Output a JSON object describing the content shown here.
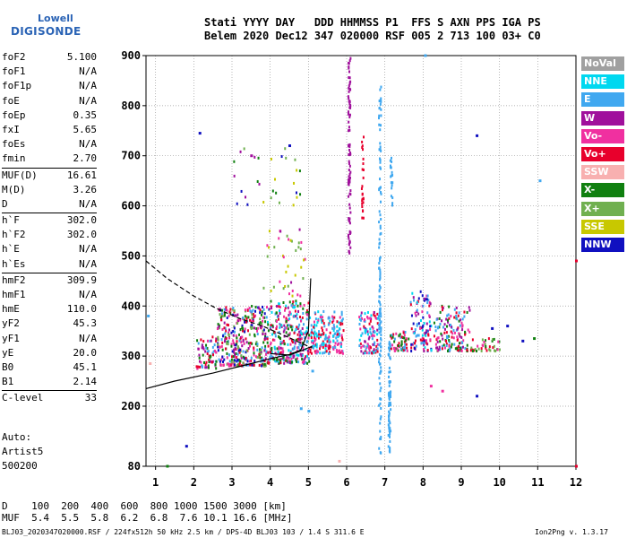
{
  "logo": {
    "line1": "Lowell",
    "line2": "DIGISONDE"
  },
  "header": {
    "line1": "Stati YYYY DAY   DDD HHMMSS P1  FFS S AXN PPS IGA PS",
    "line2": "Belem 2020 Dec12 347 020000 RSF 005 2 713 100 03+ C0"
  },
  "params_group1": [
    {
      "label": "foF2",
      "value": "5.100"
    },
    {
      "label": "foF1",
      "value": "N/A"
    },
    {
      "label": "foF1p",
      "value": "N/A"
    },
    {
      "label": "foE",
      "value": "N/A"
    },
    {
      "label": "foEp",
      "value": "0.35"
    },
    {
      "label": "fxI",
      "value": "5.65"
    },
    {
      "label": "foEs",
      "value": "N/A"
    },
    {
      "label": "fmin",
      "value": "2.70"
    }
  ],
  "params_group2": [
    {
      "label": "MUF(D)",
      "value": "16.61"
    },
    {
      "label": "M(D)",
      "value": "3.26"
    },
    {
      "label": "D",
      "value": "N/A"
    }
  ],
  "params_group3": [
    {
      "label": "h`F",
      "value": "302.0"
    },
    {
      "label": "h`F2",
      "value": "302.0"
    },
    {
      "label": "h`E",
      "value": "N/A"
    },
    {
      "label": "h`Es",
      "value": "N/A"
    }
  ],
  "params_group4": [
    {
      "label": "hmF2",
      "value": "309.9"
    },
    {
      "label": "hmF1",
      "value": "N/A"
    },
    {
      "label": "hmE",
      "value": "110.0"
    },
    {
      "label": "yF2",
      "value": "45.3"
    },
    {
      "label": "yF1",
      "value": "N/A"
    },
    {
      "label": "yE",
      "value": "20.0"
    },
    {
      "label": "B0",
      "value": "45.1"
    },
    {
      "label": "B1",
      "value": "2.14"
    }
  ],
  "params_group5": [
    {
      "label": "C-level",
      "value": "33"
    }
  ],
  "auto": {
    "line1": "Auto:",
    "line2": "Artist5",
    "line3": "500200"
  },
  "legend": [
    {
      "label": "NoVal",
      "color": "#a0a0a0"
    },
    {
      "label": "NNE",
      "color": "#00d8f0"
    },
    {
      "label": "E",
      "color": "#40a8f0"
    },
    {
      "label": "W",
      "color": "#a0109c"
    },
    {
      "label": "Vo-",
      "color": "#f030a0"
    },
    {
      "label": "Vo+",
      "color": "#e8002c"
    },
    {
      "label": "SSW",
      "color": "#f8b0b0"
    },
    {
      "label": "X-",
      "color": "#108010"
    },
    {
      "label": "X+",
      "color": "#70b050"
    },
    {
      "label": "SSE",
      "color": "#c8c800"
    },
    {
      "label": "NNW",
      "color": "#1010c0"
    }
  ],
  "muf_table": {
    "line1": "D    100  200  400  600  800 1000 1500 3000 [km]",
    "line2": "MUF  5.4  5.5  5.8  6.2  6.8  7.6 10.1 16.6 [MHz]"
  },
  "footer": "BLJ03_2020347020000.RSF / 224fx512h 50 kHz 2.5 km / DPS-4D BLJ03 103 / 1.4 S 311.6 E",
  "version": "Ion2Png v. 1.3.17",
  "chart_data": {
    "type": "scatter",
    "xlim": [
      0.75,
      12
    ],
    "ylim": [
      80,
      900
    ],
    "x_ticks": [
      1,
      2,
      3,
      4,
      5,
      6,
      7,
      8,
      9,
      10,
      11,
      12
    ],
    "y_ticks": [
      80,
      200,
      300,
      400,
      500,
      600,
      700,
      800,
      900
    ],
    "grid": "dotted",
    "clusters": [
      {
        "x0": 2.05,
        "x1": 2.6,
        "y0": 275,
        "y1": 340,
        "n": 70,
        "colors": [
          "#a0109c",
          "#e8002c",
          "#f030a0",
          "#108010",
          "#40a8f0"
        ]
      },
      {
        "x0": 2.6,
        "x1": 3.9,
        "y0": 280,
        "y1": 400,
        "n": 360,
        "colors": [
          "#a0109c",
          "#e8002c",
          "#f030a0",
          "#40a8f0",
          "#108010",
          "#70b050",
          "#1010c0"
        ]
      },
      {
        "x0": 3.9,
        "x1": 5.0,
        "y0": 285,
        "y1": 410,
        "n": 320,
        "colors": [
          "#a0109c",
          "#e8002c",
          "#f030a0",
          "#40a8f0",
          "#00d8f0",
          "#108010"
        ]
      },
      {
        "x0": 5.0,
        "x1": 5.55,
        "y0": 305,
        "y1": 390,
        "n": 120,
        "colors": [
          "#40a8f0",
          "#00d8f0",
          "#f030a0",
          "#e8002c"
        ]
      },
      {
        "x0": 5.6,
        "x1": 5.9,
        "y0": 305,
        "y1": 390,
        "n": 70,
        "colors": [
          "#40a8f0",
          "#00d8f0",
          "#e8002c",
          "#f030a0"
        ]
      },
      {
        "x0": 6.3,
        "x1": 6.8,
        "y0": 305,
        "y1": 390,
        "n": 100,
        "colors": [
          "#40a8f0",
          "#00d8f0",
          "#e8002c",
          "#f030a0",
          "#a0109c"
        ]
      },
      {
        "x0": 7.1,
        "x1": 7.6,
        "y0": 310,
        "y1": 350,
        "n": 60,
        "colors": [
          "#e8002c",
          "#f030a0",
          "#40a8f0",
          "#108010"
        ]
      },
      {
        "x0": 7.65,
        "x1": 8.2,
        "y0": 310,
        "y1": 430,
        "n": 110,
        "colors": [
          "#e8002c",
          "#f030a0",
          "#40a8f0",
          "#a0109c",
          "#00d8f0",
          "#1010c0"
        ]
      },
      {
        "x0": 8.25,
        "x1": 9.2,
        "y0": 310,
        "y1": 400,
        "n": 150,
        "colors": [
          "#e8002c",
          "#f030a0",
          "#40a8f0",
          "#a0109c",
          "#108010"
        ]
      },
      {
        "x0": 9.2,
        "x1": 10.0,
        "y0": 310,
        "y1": 335,
        "n": 40,
        "colors": [
          "#e8002c",
          "#f030a0",
          "#70b050",
          "#108010"
        ]
      },
      {
        "x0": 3.8,
        "x1": 4.9,
        "y0": 420,
        "y1": 560,
        "n": 40,
        "colors": [
          "#70b050",
          "#c8c800",
          "#a0109c",
          "#f030a0"
        ]
      },
      {
        "x0": 3.0,
        "x1": 4.8,
        "y0": 600,
        "y1": 720,
        "n": 30,
        "colors": [
          "#c8c800",
          "#70b050",
          "#108010",
          "#a0109c",
          "#1010c0"
        ]
      }
    ],
    "columns": [
      {
        "x": 6.05,
        "y0": 500,
        "y1": 900,
        "n": 90,
        "color": "#a0109c"
      },
      {
        "x": 6.4,
        "y0": 560,
        "y1": 740,
        "n": 25,
        "color": "#e8002c"
      },
      {
        "x": 6.85,
        "y0": 100,
        "y1": 840,
        "n": 130,
        "color": "#40a8f0"
      },
      {
        "x": 7.1,
        "y0": 100,
        "y1": 330,
        "n": 70,
        "color": "#40a8f0"
      },
      {
        "x": 7.15,
        "y0": 600,
        "y1": 700,
        "n": 20,
        "color": "#40a8f0"
      }
    ],
    "points": [
      {
        "x": 1.8,
        "y": 120,
        "c": "#1010c0"
      },
      {
        "x": 1.3,
        "y": 80,
        "c": "#108010"
      },
      {
        "x": 2.15,
        "y": 745,
        "c": "#1010c0"
      },
      {
        "x": 3.5,
        "y": 700,
        "c": "#a0109c"
      },
      {
        "x": 4.5,
        "y": 720,
        "c": "#1010c0"
      },
      {
        "x": 8.05,
        "y": 900,
        "c": "#40a8f0"
      },
      {
        "x": 9.4,
        "y": 740,
        "c": "#1010c0"
      },
      {
        "x": 9.4,
        "y": 220,
        "c": "#1010c0"
      },
      {
        "x": 11.05,
        "y": 650,
        "c": "#40a8f0"
      },
      {
        "x": 12.0,
        "y": 490,
        "c": "#e8002c"
      },
      {
        "x": 12.0,
        "y": 80,
        "c": "#e8002c"
      },
      {
        "x": 10.2,
        "y": 360,
        "c": "#1010c0"
      },
      {
        "x": 10.6,
        "y": 330,
        "c": "#1010c0"
      },
      {
        "x": 10.9,
        "y": 335,
        "c": "#108010"
      },
      {
        "x": 9.8,
        "y": 355,
        "c": "#1010c0"
      },
      {
        "x": 8.5,
        "y": 230,
        "c": "#f030a0"
      },
      {
        "x": 8.2,
        "y": 240,
        "c": "#f030a0"
      },
      {
        "x": 0.8,
        "y": 380,
        "c": "#40a8f0"
      },
      {
        "x": 0.85,
        "y": 285,
        "c": "#f8b0b0"
      },
      {
        "x": 4.8,
        "y": 195,
        "c": "#40a8f0"
      },
      {
        "x": 5.0,
        "y": 190,
        "c": "#40a8f0"
      },
      {
        "x": 5.1,
        "y": 270,
        "c": "#40a8f0"
      },
      {
        "x": 5.8,
        "y": 90,
        "c": "#f8b0b0"
      }
    ],
    "curves": [
      {
        "style": "solid",
        "x": [
          0.75,
          1.5,
          2.5,
          3.5,
          4.0,
          4.5,
          4.8,
          5.0,
          5.06
        ],
        "y": [
          235,
          250,
          266,
          285,
          295,
          303,
          312,
          350,
          455
        ]
      },
      {
        "style": "solid",
        "x": [
          4.0,
          4.5,
          4.8,
          5.1
        ],
        "y": [
          305,
          302,
          310,
          320
        ]
      },
      {
        "style": "dashed",
        "x": [
          0.75,
          1.3,
          2.0,
          2.6,
          3.2,
          3.8,
          4.4,
          5.1
        ],
        "y": [
          490,
          455,
          420,
          395,
          375,
          360,
          340,
          316
        ]
      }
    ]
  }
}
